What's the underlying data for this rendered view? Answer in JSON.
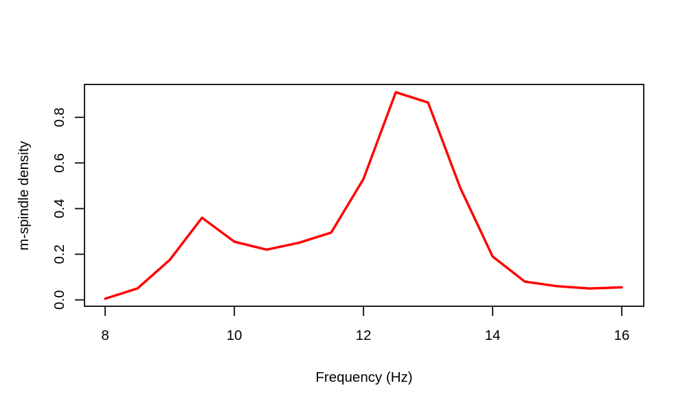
{
  "chart_data": {
    "type": "line",
    "title": "",
    "xlabel": "Frequency (Hz)",
    "ylabel": "m-spindle density",
    "x": [
      8,
      8.5,
      9,
      9.5,
      10,
      10.5,
      11,
      11.5,
      12,
      12.5,
      13,
      13.5,
      14,
      14.5,
      15,
      15.5,
      16
    ],
    "y": [
      0.005,
      0.05,
      0.175,
      0.36,
      0.255,
      0.22,
      0.25,
      0.295,
      0.53,
      0.91,
      0.865,
      0.49,
      0.19,
      0.08,
      0.06,
      0.05,
      0.055
    ],
    "x_ticks": [
      8,
      10,
      12,
      14,
      16
    ],
    "x_tick_labels": [
      "8",
      "10",
      "12",
      "14",
      "16"
    ],
    "y_ticks": [
      0.0,
      0.2,
      0.4,
      0.6,
      0.8
    ],
    "y_tick_labels": [
      "0.0",
      "0.2",
      "0.4",
      "0.6",
      "0.8"
    ],
    "xlim": [
      7.68,
      16.34
    ],
    "ylim": [
      -0.028,
      0.944
    ],
    "grid": false,
    "legend_position": "none",
    "line_color": "#ff0000",
    "axis_color": "#1f1f1f",
    "text_color": "#000000",
    "background_color": "#ffffff"
  }
}
